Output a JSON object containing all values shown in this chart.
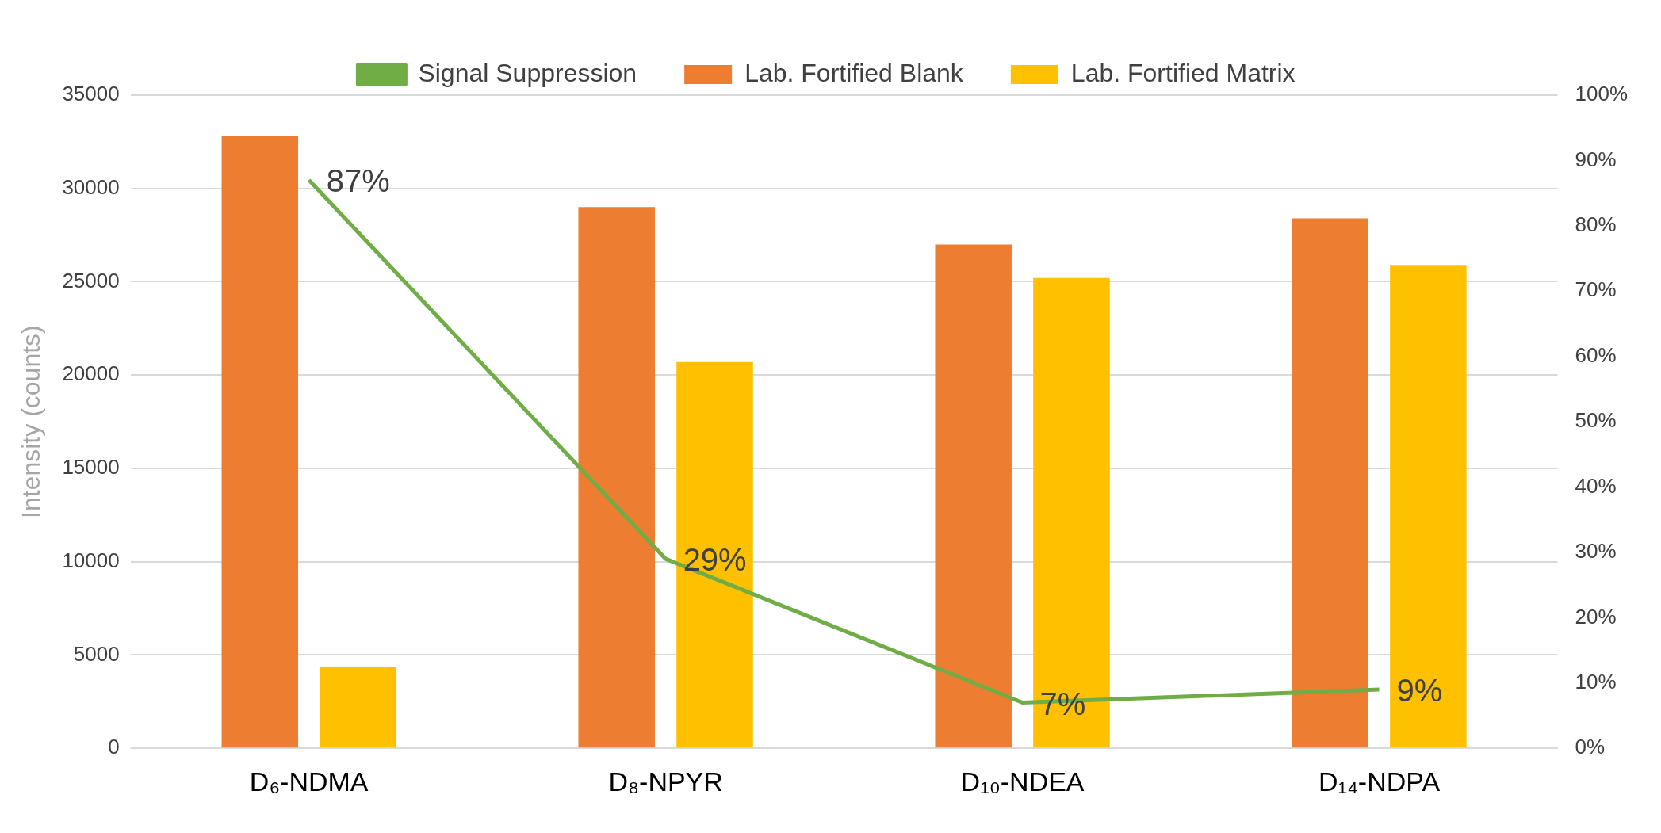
{
  "chart_data": {
    "type": "bar",
    "ylabel": "Intensity (counts)",
    "categories": [
      "D₆-NDMA",
      "D₈-NPYR",
      "D₁₀-NDEA",
      "D₁₄-NDPA"
    ],
    "series": [
      {
        "name": "Lab. Fortified Blank",
        "color": "#ed7d31",
        "values": [
          32800,
          29000,
          27000,
          28400
        ]
      },
      {
        "name": "Lab. Fortified Matrix",
        "color": "#ffc000",
        "values": [
          4350,
          20700,
          25200,
          25900
        ]
      },
      {
        "name": "Signal Suppression",
        "type": "line",
        "axis": "y2",
        "color": "#70ad47",
        "values": [
          87,
          29,
          7,
          9
        ],
        "value_labels": [
          "87%",
          "29%",
          "7%",
          "9%"
        ]
      }
    ],
    "ylim": [
      0,
      35000
    ],
    "yticks": [
      0,
      5000,
      10000,
      15000,
      20000,
      25000,
      30000,
      35000
    ],
    "y2lim": [
      0,
      100
    ],
    "y2ticks": [
      {
        "value": 0,
        "label": "0%"
      },
      {
        "value": 10,
        "label": "10%"
      },
      {
        "value": 20,
        "label": "20%"
      },
      {
        "value": 30,
        "label": "30%"
      },
      {
        "value": 40,
        "label": "40%"
      },
      {
        "value": 50,
        "label": "50%"
      },
      {
        "value": 60,
        "label": "60%"
      },
      {
        "value": 70,
        "label": "70%"
      },
      {
        "value": 80,
        "label": "80%"
      },
      {
        "value": 90,
        "label": "90%"
      },
      {
        "value": 100,
        "label": "100%"
      }
    ],
    "grid": "y",
    "legend": "top",
    "marker": "none",
    "line_style": "solid"
  }
}
